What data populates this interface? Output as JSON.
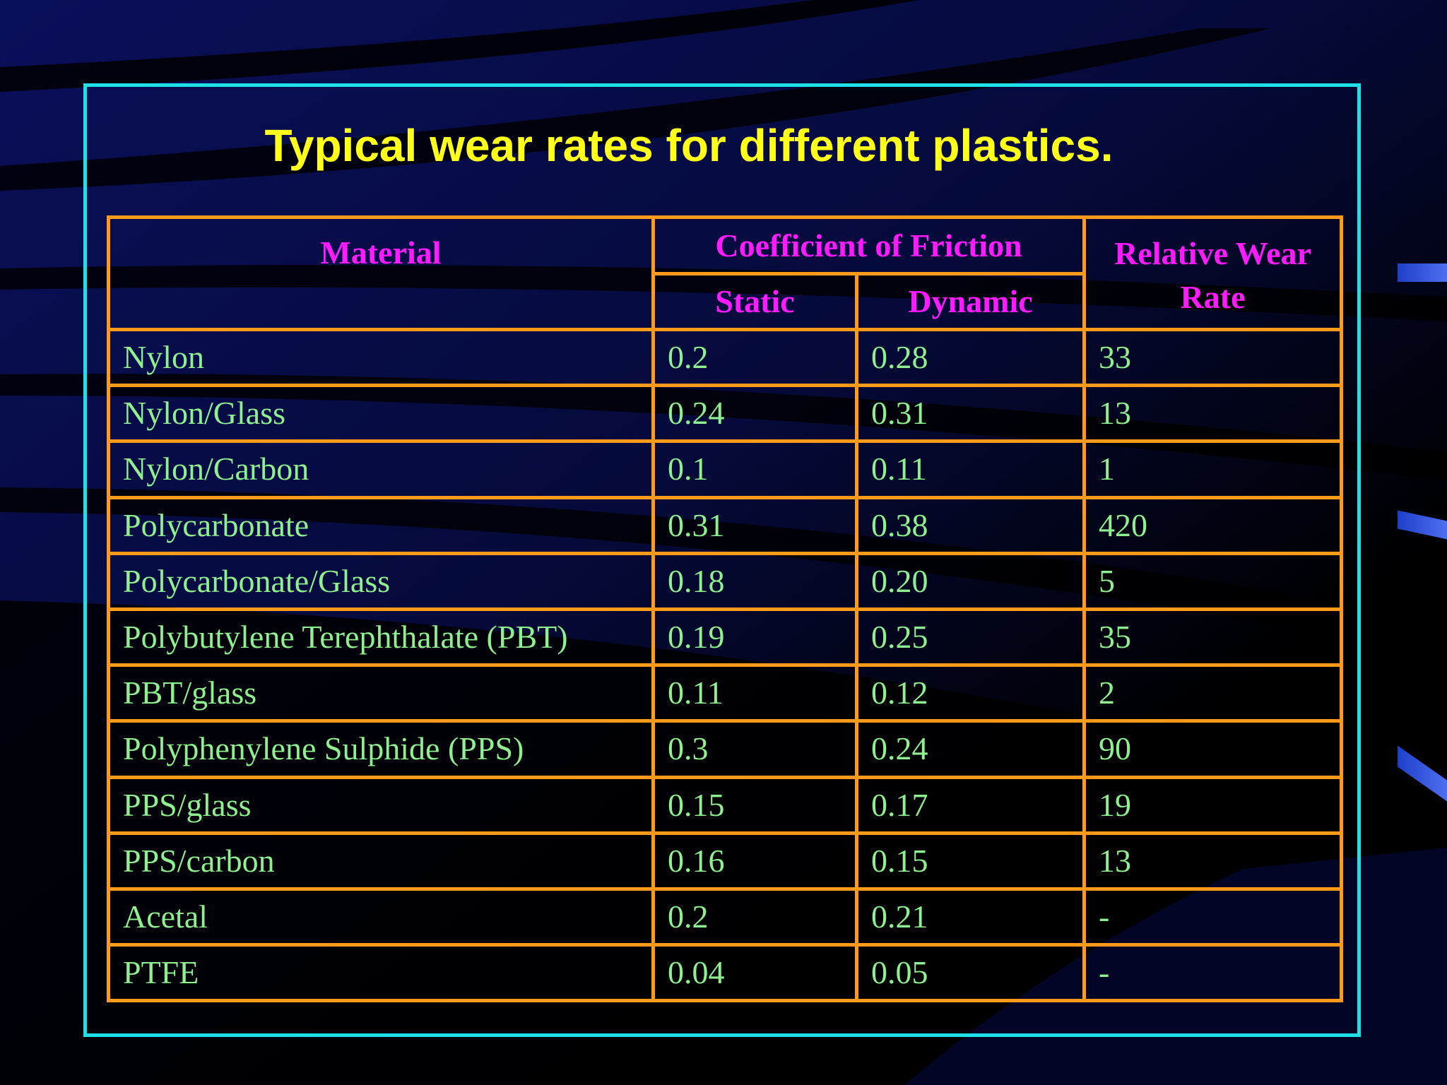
{
  "slide": {
    "title": "Typical wear rates for different plastics."
  },
  "table": {
    "headers": {
      "material": "Material",
      "friction_group": "Coefficient of Friction",
      "static": "Static",
      "dynamic": "Dynamic",
      "wear_rate": "Relative Wear Rate"
    },
    "rows": [
      {
        "material": "Nylon",
        "static": "0.2",
        "dynamic": "0.28",
        "wear": "33"
      },
      {
        "material": "Nylon/Glass",
        "static": "0.24",
        "dynamic": "0.31",
        "wear": "13"
      },
      {
        "material": "Nylon/Carbon",
        "static": "0.1",
        "dynamic": "0.11",
        "wear": "1"
      },
      {
        "material": "Polycarbonate",
        "static": "0.31",
        "dynamic": "0.38",
        "wear": "420"
      },
      {
        "material": "Polycarbonate/Glass",
        "static": "0.18",
        "dynamic": "0.20",
        "wear": "5"
      },
      {
        "material": "Polybutylene Terephthalate (PBT)",
        "static": "0.19",
        "dynamic": "0.25",
        "wear": "35"
      },
      {
        "material": "PBT/glass",
        "static": "0.11",
        "dynamic": "0.12",
        "wear": "2"
      },
      {
        "material": "Polyphenylene Sulphide (PPS)",
        "static": "0.3",
        "dynamic": "0.24",
        "wear": "90"
      },
      {
        "material": "PPS/glass",
        "static": "0.15",
        "dynamic": "0.17",
        "wear": "19"
      },
      {
        "material": "PPS/carbon",
        "static": "0.16",
        "dynamic": "0.15",
        "wear": "13"
      },
      {
        "material": "Acetal",
        "static": "0.2",
        "dynamic": "0.21",
        "wear": "-"
      },
      {
        "material": "PTFE",
        "static": "0.04",
        "dynamic": "0.05",
        "wear": "-"
      }
    ]
  },
  "colors": {
    "background": "#000000",
    "frame": "#1ee0e6",
    "title": "#ffff1a",
    "grid": "#ff9a1a",
    "header_text": "#ff1aff",
    "cell_text": "#8ff08f"
  }
}
